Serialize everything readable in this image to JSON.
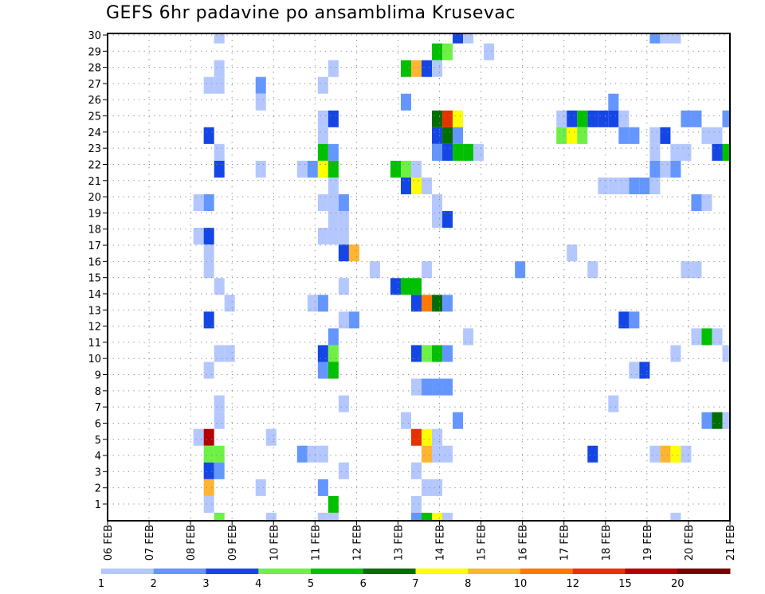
{
  "chart_data": {
    "type": "heatmap",
    "title": "GEFS 6hr padavine po ansamblima Krusevac",
    "x_tick_labels": [
      "06 FEB",
      "07 FEB",
      "08 FEB",
      "09 FEB",
      "10 FEB",
      "11 FEB",
      "12 FEB",
      "13 FEB",
      "14 FEB",
      "15 FEB",
      "16 FEB",
      "17 FEB",
      "18 FEB",
      "19 FEB",
      "20 FEB",
      "21 FEB"
    ],
    "x_steps_per_day": 4,
    "x_range_steps": [
      0,
      60
    ],
    "y_tick_labels": [
      "1",
      "2",
      "3",
      "4",
      "5",
      "6",
      "7",
      "8",
      "9",
      "10",
      "11",
      "12",
      "13",
      "14",
      "15",
      "16",
      "17",
      "18",
      "19",
      "20",
      "21",
      "22",
      "23",
      "24",
      "25",
      "26",
      "27",
      "28",
      "29",
      "30"
    ],
    "member_count": 30,
    "legend": {
      "placement": "bottom",
      "labels": [
        "1",
        "2",
        "3",
        "4",
        "5",
        "6",
        "7",
        "8",
        "10",
        "12",
        "15",
        "20"
      ],
      "colors": [
        "#b4c8ff",
        "#6496ff",
        "#1446e6",
        "#6ef046",
        "#00c000",
        "#006e00",
        "#ffff00",
        "#ffb432",
        "#ff7800",
        "#e63200",
        "#b40000",
        "#780000"
      ]
    },
    "cell_format": "[time_step_6h, member, level_index]",
    "cells": [
      [
        11,
        29,
        0
      ],
      [
        34,
        29,
        2
      ],
      [
        35,
        29,
        0
      ],
      [
        53,
        29,
        1
      ],
      [
        54,
        29,
        0
      ],
      [
        55,
        29,
        0
      ],
      [
        32,
        28,
        4
      ],
      [
        33,
        28,
        3
      ],
      [
        37,
        28,
        0
      ],
      [
        11,
        27,
        0
      ],
      [
        22,
        27,
        0
      ],
      [
        29,
        27,
        4
      ],
      [
        30,
        27,
        7
      ],
      [
        31,
        27,
        2
      ],
      [
        32,
        27,
        0
      ],
      [
        10,
        26,
        0
      ],
      [
        11,
        26,
        0
      ],
      [
        15,
        26,
        1
      ],
      [
        21,
        26,
        0
      ],
      [
        15,
        25,
        0
      ],
      [
        29,
        25,
        1
      ],
      [
        49,
        25,
        1
      ],
      [
        21,
        24,
        0
      ],
      [
        22,
        24,
        2
      ],
      [
        32,
        24,
        5
      ],
      [
        33,
        24,
        9
      ],
      [
        34,
        24,
        6
      ],
      [
        44,
        24,
        0
      ],
      [
        45,
        24,
        2
      ],
      [
        46,
        24,
        4
      ],
      [
        47,
        24,
        2
      ],
      [
        48,
        24,
        2
      ],
      [
        49,
        24,
        2
      ],
      [
        50,
        24,
        0
      ],
      [
        56,
        24,
        1
      ],
      [
        57,
        24,
        1
      ],
      [
        60,
        24,
        1
      ],
      [
        10,
        23,
        2
      ],
      [
        21,
        23,
        0
      ],
      [
        32,
        23,
        2
      ],
      [
        33,
        23,
        5
      ],
      [
        34,
        23,
        1
      ],
      [
        44,
        23,
        3
      ],
      [
        45,
        23,
        6
      ],
      [
        46,
        23,
        3
      ],
      [
        50,
        23,
        1
      ],
      [
        51,
        23,
        1
      ],
      [
        53,
        23,
        0
      ],
      [
        54,
        23,
        2
      ],
      [
        58,
        23,
        0
      ],
      [
        59,
        23,
        0
      ],
      [
        11,
        22,
        0
      ],
      [
        21,
        22,
        4
      ],
      [
        22,
        22,
        1
      ],
      [
        32,
        22,
        1
      ],
      [
        33,
        22,
        2
      ],
      [
        34,
        22,
        4
      ],
      [
        35,
        22,
        4
      ],
      [
        36,
        22,
        0
      ],
      [
        53,
        22,
        0
      ],
      [
        55,
        22,
        0
      ],
      [
        56,
        22,
        0
      ],
      [
        59,
        22,
        2
      ],
      [
        60,
        22,
        4
      ],
      [
        11,
        21,
        2
      ],
      [
        15,
        21,
        0
      ],
      [
        19,
        21,
        0
      ],
      [
        20,
        21,
        1
      ],
      [
        21,
        21,
        6
      ],
      [
        22,
        21,
        4
      ],
      [
        28,
        21,
        4
      ],
      [
        29,
        21,
        3
      ],
      [
        30,
        21,
        0
      ],
      [
        53,
        21,
        1
      ],
      [
        54,
        21,
        0
      ],
      [
        55,
        21,
        1
      ],
      [
        22,
        20,
        0
      ],
      [
        29,
        20,
        2
      ],
      [
        30,
        20,
        6
      ],
      [
        31,
        20,
        0
      ],
      [
        48,
        20,
        0
      ],
      [
        49,
        20,
        0
      ],
      [
        50,
        20,
        0
      ],
      [
        51,
        20,
        1
      ],
      [
        52,
        20,
        1
      ],
      [
        53,
        20,
        0
      ],
      [
        9,
        19,
        0
      ],
      [
        10,
        19,
        1
      ],
      [
        21,
        19,
        0
      ],
      [
        22,
        19,
        0
      ],
      [
        23,
        19,
        1
      ],
      [
        32,
        19,
        0
      ],
      [
        57,
        19,
        1
      ],
      [
        58,
        19,
        0
      ],
      [
        22,
        18,
        0
      ],
      [
        23,
        18,
        0
      ],
      [
        32,
        18,
        0
      ],
      [
        33,
        18,
        2
      ],
      [
        9,
        17,
        0
      ],
      [
        10,
        17,
        2
      ],
      [
        21,
        17,
        0
      ],
      [
        22,
        17,
        0
      ],
      [
        23,
        17,
        0
      ],
      [
        10,
        16,
        0
      ],
      [
        23,
        16,
        2
      ],
      [
        24,
        16,
        7
      ],
      [
        45,
        16,
        0
      ],
      [
        10,
        15,
        0
      ],
      [
        26,
        15,
        0
      ],
      [
        31,
        15,
        0
      ],
      [
        40,
        15,
        1
      ],
      [
        47,
        15,
        0
      ],
      [
        56,
        15,
        0
      ],
      [
        57,
        15,
        0
      ],
      [
        11,
        14,
        0
      ],
      [
        23,
        14,
        0
      ],
      [
        28,
        14,
        2
      ],
      [
        29,
        14,
        4
      ],
      [
        30,
        14,
        4
      ],
      [
        12,
        13,
        0
      ],
      [
        20,
        13,
        0
      ],
      [
        21,
        13,
        1
      ],
      [
        30,
        13,
        2
      ],
      [
        31,
        13,
        8
      ],
      [
        32,
        13,
        5
      ],
      [
        33,
        13,
        1
      ],
      [
        10,
        12,
        2
      ],
      [
        23,
        12,
        0
      ],
      [
        24,
        12,
        1
      ],
      [
        50,
        12,
        2
      ],
      [
        51,
        12,
        1
      ],
      [
        22,
        11,
        1
      ],
      [
        35,
        11,
        0
      ],
      [
        57,
        11,
        0
      ],
      [
        58,
        11,
        4
      ],
      [
        59,
        11,
        0
      ],
      [
        11,
        10,
        0
      ],
      [
        12,
        10,
        0
      ],
      [
        21,
        10,
        2
      ],
      [
        22,
        10,
        3
      ],
      [
        30,
        10,
        2
      ],
      [
        31,
        10,
        3
      ],
      [
        32,
        10,
        4
      ],
      [
        33,
        10,
        1
      ],
      [
        55,
        10,
        0
      ],
      [
        60,
        10,
        0
      ],
      [
        10,
        9,
        0
      ],
      [
        21,
        9,
        1
      ],
      [
        22,
        9,
        4
      ],
      [
        51,
        9,
        0
      ],
      [
        52,
        9,
        2
      ],
      [
        30,
        8,
        0
      ],
      [
        31,
        8,
        1
      ],
      [
        32,
        8,
        1
      ],
      [
        33,
        8,
        1
      ],
      [
        11,
        7,
        0
      ],
      [
        23,
        7,
        0
      ],
      [
        49,
        7,
        0
      ],
      [
        11,
        6,
        0
      ],
      [
        29,
        6,
        0
      ],
      [
        34,
        6,
        1
      ],
      [
        58,
        6,
        1
      ],
      [
        59,
        6,
        5
      ],
      [
        60,
        6,
        0
      ],
      [
        9,
        5,
        0
      ],
      [
        10,
        5,
        10
      ],
      [
        16,
        5,
        0
      ],
      [
        30,
        5,
        9
      ],
      [
        31,
        5,
        6
      ],
      [
        32,
        5,
        0
      ],
      [
        10,
        4,
        3
      ],
      [
        11,
        4,
        3
      ],
      [
        19,
        4,
        1
      ],
      [
        20,
        4,
        0
      ],
      [
        21,
        4,
        0
      ],
      [
        31,
        4,
        7
      ],
      [
        32,
        4,
        0
      ],
      [
        33,
        4,
        0
      ],
      [
        47,
        4,
        2
      ],
      [
        53,
        4,
        0
      ],
      [
        54,
        4,
        7
      ],
      [
        55,
        4,
        6
      ],
      [
        56,
        4,
        0
      ],
      [
        10,
        3,
        2
      ],
      [
        11,
        3,
        1
      ],
      [
        23,
        3,
        0
      ],
      [
        30,
        3,
        0
      ],
      [
        10,
        2,
        7
      ],
      [
        15,
        2,
        0
      ],
      [
        21,
        2,
        1
      ],
      [
        31,
        2,
        0
      ],
      [
        32,
        2,
        0
      ],
      [
        10,
        1,
        0
      ],
      [
        22,
        1,
        4
      ],
      [
        30,
        1,
        0
      ],
      [
        11,
        0,
        3
      ],
      [
        16,
        0,
        0
      ],
      [
        21,
        0,
        0
      ],
      [
        22,
        0,
        0
      ],
      [
        30,
        0,
        1
      ],
      [
        31,
        0,
        4
      ],
      [
        32,
        0,
        6
      ],
      [
        33,
        0,
        0
      ],
      [
        55,
        0,
        0
      ]
    ],
    "grid": true
  }
}
